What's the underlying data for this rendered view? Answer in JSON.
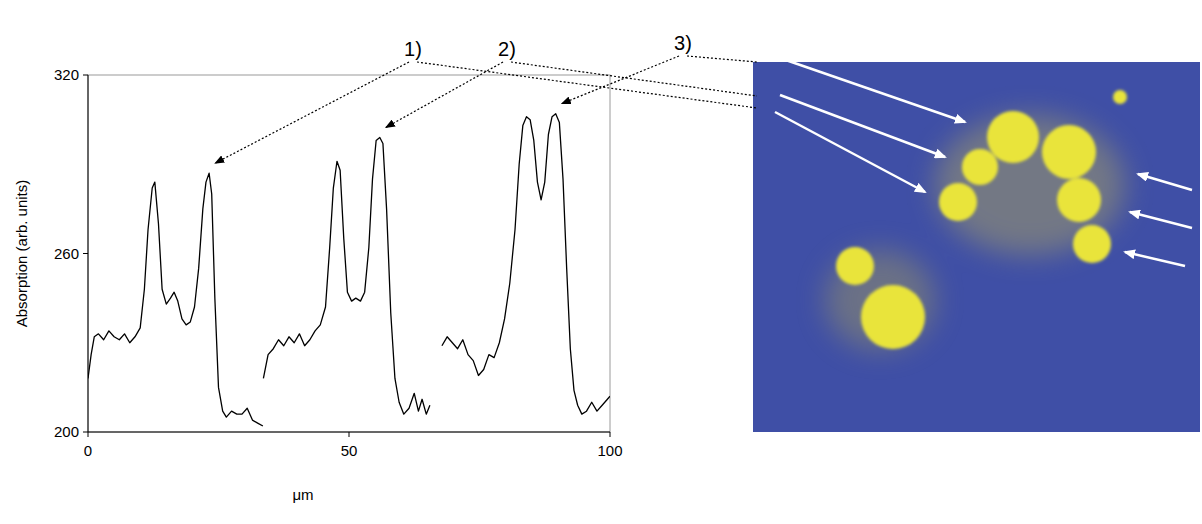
{
  "chart_data": {
    "type": "line",
    "x_label": "μm",
    "y_label": "Absorption (arb. units)",
    "xlim": [
      0,
      100
    ],
    "ylim": [
      200,
      320
    ],
    "xticks": [
      0,
      50,
      100
    ],
    "yticks": [
      200,
      260,
      320
    ],
    "color": "#000000",
    "series": [
      {
        "name": "1)",
        "x": [
          0,
          0.6,
          1.2,
          2,
          3,
          4,
          5,
          6,
          7,
          8,
          9,
          10,
          10.8,
          11.5,
          12.3,
          12.8,
          13.5,
          14.2,
          15,
          15.8,
          16.5,
          17.2,
          18,
          18.8,
          19.6,
          20.4,
          21.2,
          22,
          22.6,
          23.2,
          23.7,
          24.3,
          25,
          25.8,
          26.5,
          27.5,
          28.5,
          29.5,
          30.5,
          31.5,
          32.5,
          33.5
        ],
        "values": [
          218,
          226,
          232,
          233,
          231,
          234,
          232,
          231,
          233,
          230,
          232,
          235,
          248,
          268,
          282,
          284,
          270,
          248,
          243,
          245,
          247,
          244,
          238,
          236,
          237,
          242,
          255,
          275,
          284,
          287,
          280,
          245,
          215,
          207,
          205,
          207,
          206,
          206,
          208,
          204,
          203,
          202
        ]
      },
      {
        "name": "2)",
        "x": [
          33.6,
          34.5,
          35.5,
          36.5,
          37.5,
          38.5,
          39.5,
          40.5,
          41.5,
          42.5,
          43.5,
          44.5,
          45.5,
          46.3,
          47,
          47.7,
          48.3,
          49,
          49.7,
          50.5,
          51.3,
          52.2,
          53,
          53.8,
          54.5,
          55.2,
          55.9,
          56.5,
          57.2,
          58,
          58.8,
          59.6,
          60.5,
          61.5,
          62.5,
          63.3,
          64,
          64.8,
          65.5
        ],
        "values": [
          218,
          226,
          228,
          231,
          229,
          232,
          230,
          233,
          229,
          231,
          234,
          236,
          242,
          262,
          282,
          291,
          288,
          265,
          247,
          244,
          245,
          244,
          247,
          262,
          285,
          298,
          299,
          297,
          275,
          240,
          218,
          210,
          206,
          208,
          213,
          207,
          211,
          206,
          209
        ]
      },
      {
        "name": "3)",
        "x": [
          67.8,
          68.8,
          69.8,
          70.8,
          71.8,
          72.8,
          73.8,
          74.8,
          75.8,
          76.8,
          77.8,
          78.8,
          79.8,
          80.8,
          81.8,
          82.6,
          83.3,
          84,
          84.7,
          85.4,
          86.1,
          86.8,
          87.5,
          88.2,
          88.9,
          89.6,
          90.3,
          91,
          91.7,
          92.4,
          93.1,
          93.8,
          94.6,
          95.5,
          96.5,
          97.5,
          98.5,
          99.5,
          100
        ],
        "values": [
          229,
          232,
          230,
          228,
          231,
          226,
          224,
          219,
          221,
          226,
          225,
          230,
          238,
          250,
          268,
          290,
          303,
          306,
          305,
          298,
          284,
          278,
          284,
          300,
          306,
          307,
          304,
          285,
          255,
          228,
          214,
          209,
          206,
          207,
          210,
          207,
          209,
          211,
          212
        ]
      }
    ]
  }
}
